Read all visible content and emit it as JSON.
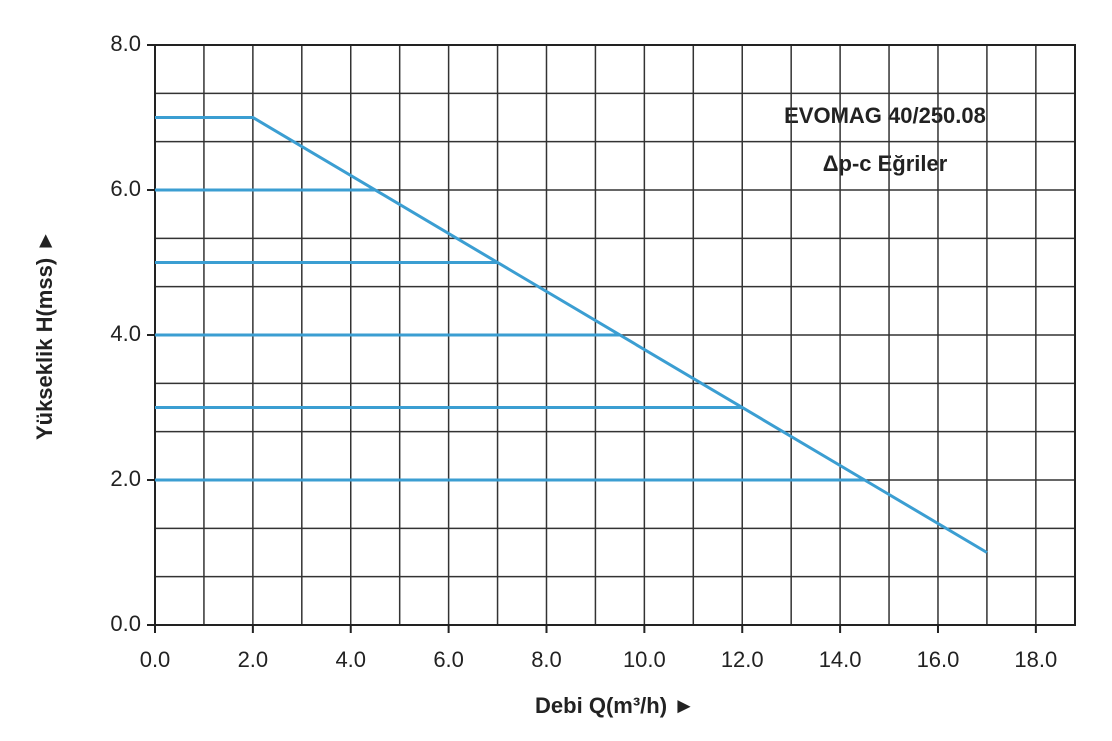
{
  "chart_data": {
    "type": "line",
    "annotations": [
      "EVOMAG 40/250.08",
      "Δp-c Eğriler"
    ],
    "xlabel": "Debi Q(m³/h) ►",
    "ylabel": "Yükseklik H(mss) ►",
    "xlim": [
      0,
      18.8
    ],
    "ylim": [
      0,
      8
    ],
    "xticks": [
      {
        "value": 0,
        "label": "0.0"
      },
      {
        "value": 2,
        "label": "2.0"
      },
      {
        "value": 4,
        "label": "4.0"
      },
      {
        "value": 6,
        "label": "6.0"
      },
      {
        "value": 8,
        "label": "8.0"
      },
      {
        "value": 10,
        "label": "10.0"
      },
      {
        "value": 12,
        "label": "12.0"
      },
      {
        "value": 14,
        "label": "14.0"
      },
      {
        "value": 16,
        "label": "16.0"
      },
      {
        "value": 18,
        "label": "18.0"
      }
    ],
    "yticks": [
      {
        "value": 0,
        "label": "0.0"
      },
      {
        "value": 2,
        "label": "2.0"
      },
      {
        "value": 4,
        "label": "4.0"
      },
      {
        "value": 6,
        "label": "6.0"
      },
      {
        "value": 8,
        "label": "8.0"
      }
    ],
    "xgrid": [
      1,
      2,
      3,
      4,
      5,
      6,
      7,
      8,
      9,
      10,
      11,
      12,
      13,
      14,
      15,
      16,
      17,
      18
    ],
    "ygrid": [
      0.667,
      1.333,
      2,
      2.667,
      3.333,
      4,
      4.667,
      5.333,
      6,
      6.667,
      7.333
    ],
    "grid": true,
    "series": [
      {
        "color": "#3b9ed2",
        "x": [
          0,
          2,
          17
        ],
        "values": [
          7,
          7,
          1
        ]
      },
      {
        "color": "#3b9ed2",
        "x": [
          0,
          4.5
        ],
        "values": [
          6,
          6
        ]
      },
      {
        "color": "#3b9ed2",
        "x": [
          0,
          7
        ],
        "values": [
          5,
          5
        ]
      },
      {
        "color": "#3b9ed2",
        "x": [
          0,
          9.5
        ],
        "values": [
          4,
          4
        ]
      },
      {
        "color": "#3b9ed2",
        "x": [
          0,
          12
        ],
        "values": [
          3,
          3
        ]
      },
      {
        "color": "#3b9ed2",
        "x": [
          0,
          14.5
        ],
        "values": [
          2,
          2
        ]
      }
    ]
  }
}
